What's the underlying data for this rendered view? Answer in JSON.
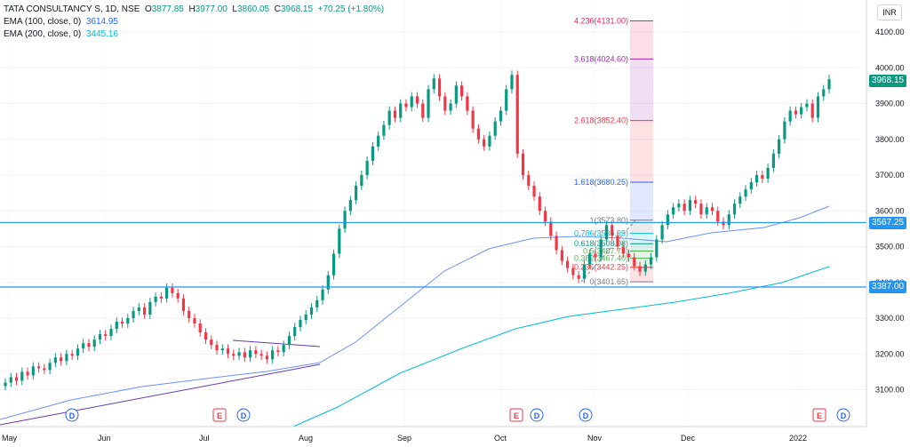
{
  "header": {
    "symbol": "TATA CONSULTANCY S, 1D, NSE",
    "o_label": "O",
    "o_value": "3877.85",
    "h_label": "H",
    "h_value": "3977.00",
    "l_label": "L",
    "l_value": "3860.05",
    "c_label": "C",
    "c_value": "3968.15",
    "change": "+70.25 (+1.80%)"
  },
  "indicators": [
    {
      "label": "EMA (100, close, 0)",
      "value": "3614.95",
      "color": "#2962ff"
    },
    {
      "label": "EMA (200, close, 0)",
      "value": "3445.16",
      "color": "#00bcd4"
    }
  ],
  "currency": "INR",
  "price_axis": {
    "ticks": [
      "4100.00",
      "4000.00",
      "3900.00",
      "3800.00",
      "3700.00",
      "3600.00",
      "3500.00",
      "3400.00",
      "3300.00",
      "3200.00",
      "3100.00"
    ],
    "last_price": "3968.15",
    "hline_upper": "3567.25",
    "hline_lower": "3387.00"
  },
  "time_axis": {
    "ticks": [
      "May",
      "Jun",
      "Jul",
      "Aug",
      "Sep",
      "Oct",
      "Nov",
      "Dec",
      "2022"
    ]
  },
  "fib_levels": [
    {
      "ratio": "4.236",
      "price": "4131.00",
      "color": "#e91e63"
    },
    {
      "ratio": "3.618",
      "price": "4024.60",
      "color": "#9c27b0"
    },
    {
      "ratio": "2.618",
      "price": "3852.40",
      "color": "#f23645"
    },
    {
      "ratio": "1.618",
      "price": "3680.25",
      "color": "#2962ff"
    },
    {
      "ratio": "1",
      "price": "3573.80",
      "color": "#787b86"
    },
    {
      "ratio": "0.786",
      "price": "3536.95",
      "color": "#00bcd4"
    },
    {
      "ratio": "0.618",
      "price": "3508.08",
      "color": "#089981"
    },
    {
      "ratio": "0.5",
      "price": "3487.73",
      "color": "#4caf50"
    },
    {
      "ratio": "0.382",
      "price": "3467.40",
      "color": "#4caf50"
    },
    {
      "ratio": "0.236",
      "price": "3442.25",
      "color": "#f23645"
    },
    {
      "ratio": "0",
      "price": "3401.65",
      "color": "#787b86"
    }
  ],
  "events": [
    {
      "type": "D",
      "date": "Jun"
    },
    {
      "type": "E",
      "date": "Jul"
    },
    {
      "type": "D",
      "date": "Jul"
    },
    {
      "type": "E",
      "date": "Oct"
    },
    {
      "type": "D",
      "date": "Oct"
    },
    {
      "type": "D",
      "date": "Nov"
    },
    {
      "type": "E",
      "date": "2022"
    },
    {
      "type": "D",
      "date": "2022"
    }
  ],
  "colors": {
    "up": "#089981",
    "down": "#f23645",
    "ema100": "#2962ff",
    "ema200": "#00bcd4",
    "hline": "#2196f3",
    "trendline": "#673ab7"
  }
}
